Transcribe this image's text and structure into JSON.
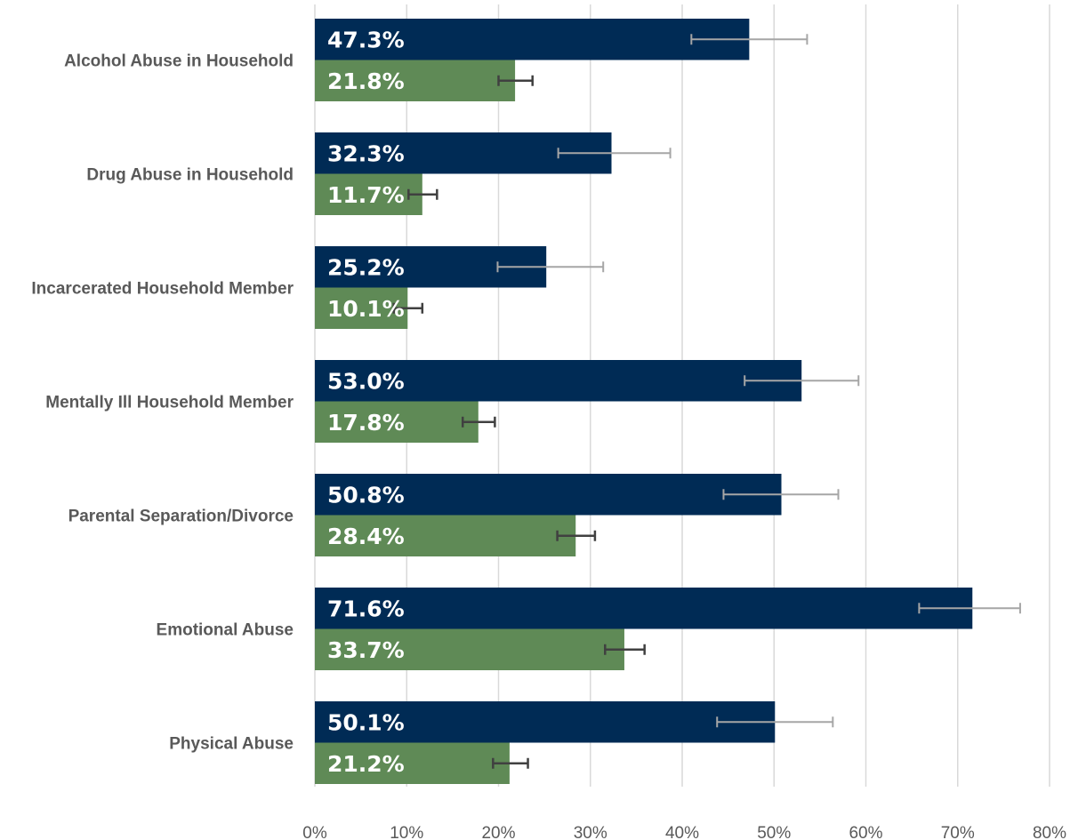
{
  "chart_data": {
    "type": "bar",
    "orientation": "horizontal",
    "categories": [
      "Alcohol Abuse in Household",
      "Drug Abuse in Household",
      "Incarcerated Household Member",
      "Mentally Ill Household Member",
      "Parental Separation/Divorce",
      "Emotional Abuse",
      "Physical Abuse"
    ],
    "series": [
      {
        "color": "#002b55",
        "errorbar_color": "#a6a6a6",
        "values": [
          47.3,
          32.3,
          25.2,
          53.0,
          50.8,
          71.6,
          50.1
        ],
        "labels": [
          "47.3%",
          "32.3%",
          "25.2%",
          "53.0%",
          "50.8%",
          "71.6%",
          "50.1%"
        ],
        "error_low": [
          41.0,
          26.5,
          19.9,
          46.8,
          44.5,
          65.8,
          43.8
        ],
        "error_high": [
          53.6,
          38.7,
          31.4,
          59.2,
          57.0,
          76.8,
          56.4
        ]
      },
      {
        "color": "#5f8a56",
        "errorbar_color": "#404040",
        "values": [
          21.8,
          11.7,
          10.1,
          17.8,
          28.4,
          33.7,
          21.2
        ],
        "labels": [
          "21.8%",
          "11.7%",
          "10.1%",
          "17.8%",
          "28.4%",
          "33.7%",
          "21.2%"
        ],
        "error_low": [
          20.0,
          10.2,
          8.6,
          16.1,
          26.4,
          31.6,
          19.4
        ],
        "error_high": [
          23.7,
          13.3,
          11.7,
          19.6,
          30.5,
          35.9,
          23.2
        ]
      }
    ],
    "xlim": [
      0,
      80
    ],
    "xticks": [
      0,
      10,
      20,
      30,
      40,
      50,
      60,
      70,
      80
    ],
    "xtick_labels": [
      "0%",
      "10%",
      "20%",
      "30%",
      "40%",
      "50%",
      "60%",
      "70%",
      "80%"
    ],
    "grid": "vertical",
    "legend": "none"
  }
}
